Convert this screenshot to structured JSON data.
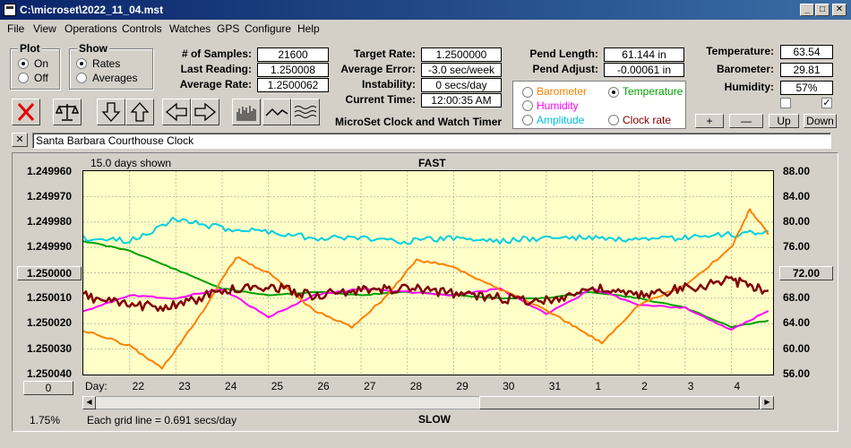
{
  "window": {
    "title": "C:\\microset\\2022_11_04.mst"
  },
  "menu": [
    "File",
    "View",
    "Operations",
    "Controls",
    "Watches",
    "GPS",
    "Configure",
    "Help"
  ],
  "plot_group": {
    "title": "Plot",
    "on": "On",
    "off": "Off",
    "selected": "On"
  },
  "show_group": {
    "title": "Show",
    "rates": "Rates",
    "averages": "Averages",
    "selected": "Rates"
  },
  "stats": {
    "samples_label": "# of Samples:",
    "samples": "21600",
    "last_reading_label": "Last Reading:",
    "last_reading": "1.250008",
    "average_rate_label": "Average Rate:",
    "average_rate": "1.2500062",
    "target_rate_label": "Target Rate:",
    "target_rate": "1.2500000",
    "average_error_label": "Average Error:",
    "average_error": "-3.0 sec/week",
    "instability_label": "Instability:",
    "instability": "0 secs/day",
    "current_time_label": "Current Time:",
    "current_time": "12:00:35 AM",
    "app_name": "MicroSet Clock and Watch Timer",
    "pend_length_label": "Pend Length:",
    "pend_length": "61.144 in",
    "pend_adjust_label": "Pend Adjust:",
    "pend_adjust": "-0.00061 in",
    "temperature_label": "Temperature:",
    "temperature": "63.54",
    "barometer_label": "Barometer:",
    "barometer": "29.81",
    "humidity_label": "Humidity:",
    "humidity": "57%"
  },
  "aux_legend": {
    "items": [
      {
        "label": "Barometer",
        "color": "#ff8000",
        "selected": false
      },
      {
        "label": "Temperature",
        "color": "#00a000",
        "selected": true
      },
      {
        "label": "Humidity",
        "color": "#ff00ff",
        "selected": false
      },
      {
        "label": "Clock rate",
        "color": "#800000",
        "selected": false
      },
      {
        "label": "Amplitude",
        "color": "#00d0e0",
        "selected": false
      }
    ]
  },
  "right_buttons": {
    "plus": "+",
    "minus": "—",
    "up": "Up",
    "down": "Down"
  },
  "checkboxes": [
    false,
    true
  ],
  "clock_name": {
    "close": "✕",
    "value": "Santa Barbara Courthouse Clock"
  },
  "toolbar_icons": [
    "delete-icon",
    "balance-scale-icon",
    "arrow-down-icon",
    "arrow-up-icon",
    "arrow-left-icon",
    "arrow-right-icon",
    "bar-graph-icon",
    "line-graph-icon",
    "wave-graph-icon"
  ],
  "chart": {
    "days_shown": "15.0 days shown",
    "top_label": "FAST",
    "bottom_label": "SLOW",
    "grid_note": "Each grid line = 0.691 secs/day",
    "percent": "1.75%",
    "left_center_button": "1.250000",
    "left_bottom_button": "0",
    "right_center_button": "72.00",
    "day_label": "Day:"
  },
  "chart_data": {
    "type": "line",
    "x_label": "Day:",
    "x_ticks": [
      "22",
      "23",
      "24",
      "25",
      "26",
      "27",
      "28",
      "29",
      "30",
      "31",
      "1",
      "2",
      "3",
      "4"
    ],
    "y_left_ticks": [
      "1.249960",
      "1.249970",
      "1.249980",
      "1.249990",
      "1.250000",
      "1.250010",
      "1.250020",
      "1.250030",
      "1.250040"
    ],
    "y_left_range": [
      1.24996,
      1.25004
    ],
    "y_left_inverted": true,
    "y_right_ticks": [
      "88.00",
      "84.00",
      "80.00",
      "76.00",
      "72.00",
      "68.00",
      "64.00",
      "60.00",
      "56.00"
    ],
    "y_right_range": [
      56,
      88
    ],
    "grid": true,
    "series": [
      {
        "name": "Clock rate",
        "color": "#800000",
        "axis": "left",
        "x": [
          21.0,
          22.0,
          23.0,
          24.0,
          25.0,
          26.0,
          27.0,
          28.0,
          29.0,
          30.0,
          31.0,
          32.0,
          33.0,
          34.0,
          35.0,
          35.8
        ],
        "y": [
          1.250009,
          1.250013,
          1.250013,
          1.250007,
          1.250005,
          1.250009,
          1.250007,
          1.250006,
          1.250008,
          1.25001,
          1.250011,
          1.250006,
          1.250009,
          1.250006,
          1.250003,
          1.250007
        ]
      },
      {
        "name": "Temperature",
        "color": "#00a000",
        "axis": "right",
        "x": [
          21.0,
          22.0,
          23.0,
          24.0,
          25.0,
          26.0,
          27.0,
          28.0,
          29.0,
          30.0,
          31.0,
          32.0,
          33.0,
          34.0,
          35.0,
          35.8
        ],
        "y": [
          77.0,
          75.5,
          72.5,
          69.5,
          68.5,
          69.0,
          68.5,
          69.0,
          68.5,
          68.0,
          68.0,
          69.0,
          68.0,
          66.5,
          63.5,
          64.5
        ]
      },
      {
        "name": "Amplitude",
        "color": "#00d0e0",
        "axis": "right",
        "x": [
          21.0,
          22.0,
          23.0,
          24.0,
          25.0,
          26.0,
          27.0,
          28.0,
          29.0,
          30.0,
          31.0,
          32.0,
          33.0,
          34.0,
          35.0,
          35.8
        ],
        "y": [
          77.5,
          77.0,
          80.5,
          79.0,
          78.5,
          77.5,
          77.5,
          77.0,
          77.5,
          77.0,
          77.5,
          77.5,
          77.0,
          77.5,
          78.0,
          78.5
        ]
      },
      {
        "name": "Humidity",
        "color": "#ff00ff",
        "axis": "right",
        "x": [
          21.0,
          22.0,
          23.0,
          24.0,
          25.0,
          26.0,
          27.0,
          28.0,
          29.0,
          30.0,
          31.0,
          32.0,
          33.0,
          34.0,
          35.0,
          35.8
        ],
        "y": [
          66.0,
          68.5,
          68.0,
          69.5,
          65.0,
          68.5,
          69.5,
          69.0,
          68.5,
          69.5,
          65.5,
          69.5,
          67.0,
          66.5,
          63.0,
          66.0
        ]
      },
      {
        "name": "Barometer",
        "color": "#ff8000",
        "axis": "right",
        "x": [
          21.0,
          22.0,
          22.7,
          23.5,
          24.3,
          25.0,
          26.0,
          26.8,
          27.5,
          28.2,
          29.0,
          29.8,
          30.5,
          31.5,
          32.2,
          33.0,
          34.0,
          35.0,
          35.4,
          35.8
        ],
        "y": [
          63.0,
          60.5,
          57.0,
          65.0,
          74.5,
          72.0,
          66.0,
          63.5,
          68.0,
          74.0,
          73.0,
          70.0,
          68.0,
          64.0,
          61.0,
          67.0,
          70.0,
          76.0,
          82.0,
          78.0
        ]
      }
    ]
  }
}
